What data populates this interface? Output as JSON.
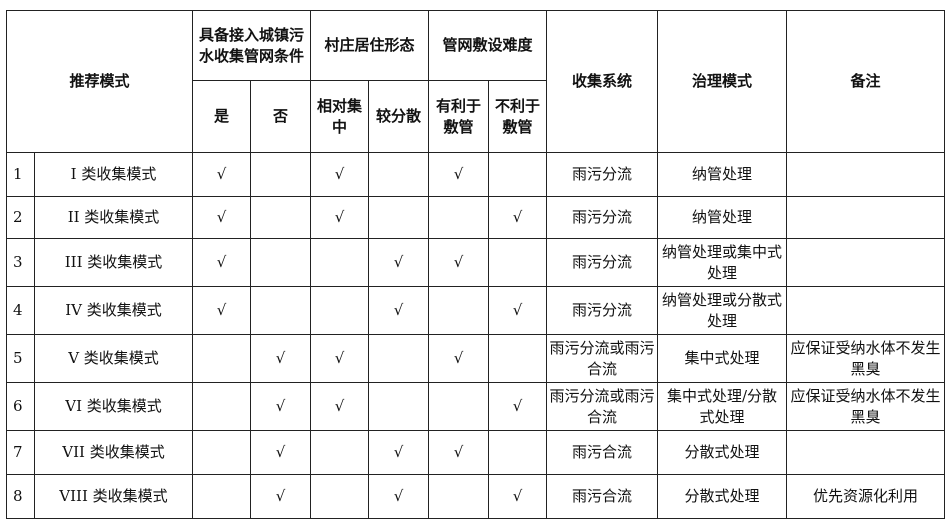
{
  "header": {
    "mode": "推荐模式",
    "connect_group": "具备接入城镇污水收集管网条件",
    "connect_yes": "是",
    "connect_no": "否",
    "settle_group": "村庄居住形态",
    "settle_concentrated": "相对集中",
    "settle_scattered": "较分散",
    "pipe_group": "管网敷设难度",
    "pipe_favorable": "有利于敷管",
    "pipe_unfavorable": "不利于敷管",
    "collection": "收集系统",
    "treatment": "治理模式",
    "remarks": "备注"
  },
  "check_mark": "√",
  "rows": [
    {
      "no": "1",
      "mode": "I 类收集模式",
      "connect": "yes",
      "settle": "concentrated",
      "pipe": "favorable",
      "collection": "雨污分流",
      "treatment": "纳管处理",
      "remarks": ""
    },
    {
      "no": "2",
      "mode": "II 类收集模式",
      "connect": "yes",
      "settle": "concentrated",
      "pipe": "unfavorable",
      "collection": "雨污分流",
      "treatment": "纳管处理",
      "remarks": ""
    },
    {
      "no": "3",
      "mode": "III 类收集模式",
      "connect": "yes",
      "settle": "scattered",
      "pipe": "favorable",
      "collection": "雨污分流",
      "treatment": "纳管处理或集中式处理",
      "remarks": ""
    },
    {
      "no": "4",
      "mode": "IV 类收集模式",
      "connect": "yes",
      "settle": "scattered",
      "pipe": "unfavorable",
      "collection": "雨污分流",
      "treatment": "纳管处理或分散式处理",
      "remarks": ""
    },
    {
      "no": "5",
      "mode": "V 类收集模式",
      "connect": "no",
      "settle": "concentrated",
      "pipe": "favorable",
      "collection": "雨污分流或雨污合流",
      "treatment": "集中式处理",
      "remarks": "应保证受纳水体不发生黑臭"
    },
    {
      "no": "6",
      "mode": "VI 类收集模式",
      "connect": "no",
      "settle": "concentrated",
      "pipe": "unfavorable",
      "collection": "雨污分流或雨污合流",
      "treatment": "集中式处理/分散式处理",
      "remarks": "应保证受纳水体不发生黑臭"
    },
    {
      "no": "7",
      "mode": "VII 类收集模式",
      "connect": "no",
      "settle": "scattered",
      "pipe": "favorable",
      "collection": "雨污合流",
      "treatment": "分散式处理",
      "remarks": ""
    },
    {
      "no": "8",
      "mode": "VIII 类收集模式",
      "connect": "no",
      "settle": "scattered",
      "pipe": "unfavorable",
      "collection": "雨污合流",
      "treatment": "分散式处理",
      "remarks": "优先资源化利用"
    }
  ]
}
